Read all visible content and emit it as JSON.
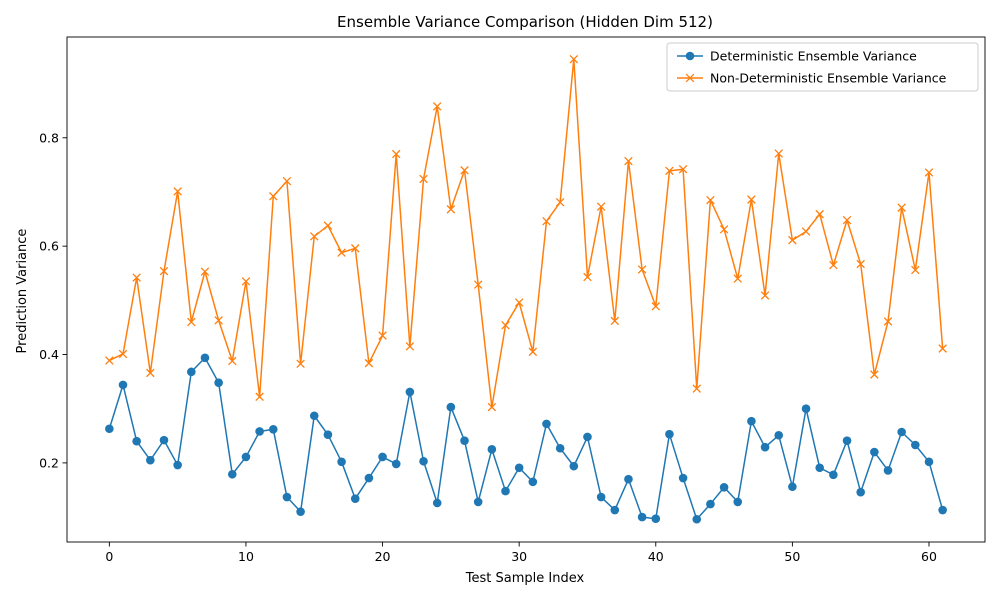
{
  "chart_data": {
    "type": "line",
    "title": "Ensemble Variance Comparison (Hidden Dim 512)",
    "xlabel": "Test Sample Index",
    "ylabel": "Prediction Variance",
    "xlim": [
      -3.1,
      64.1
    ],
    "ylim": [
      0.054,
      0.986
    ],
    "xticks": [
      0,
      10,
      20,
      30,
      40,
      50,
      60
    ],
    "yticks": [
      0.2,
      0.4,
      0.6,
      0.8
    ],
    "ytick_labels": [
      "0.2",
      "0.4",
      "0.6",
      "0.8"
    ],
    "grid": false,
    "legend_position": "top-right",
    "x": [
      0,
      1,
      2,
      3,
      4,
      5,
      6,
      7,
      8,
      9,
      10,
      11,
      12,
      13,
      14,
      15,
      16,
      17,
      18,
      19,
      20,
      21,
      22,
      23,
      24,
      25,
      26,
      27,
      28,
      29,
      30,
      31,
      32,
      33,
      34,
      35,
      36,
      37,
      38,
      39,
      40,
      41,
      42,
      43,
      44,
      45,
      46,
      47,
      48,
      49,
      50,
      51,
      52,
      53,
      54,
      55,
      56,
      57,
      58,
      59,
      60,
      61
    ],
    "series": [
      {
        "name": "Deterministic Ensemble Variance",
        "color": "#1f77b4",
        "marker": "circle",
        "values": [
          0.263,
          0.344,
          0.24,
          0.205,
          0.242,
          0.196,
          0.368,
          0.394,
          0.348,
          0.179,
          0.211,
          0.258,
          0.262,
          0.137,
          0.11,
          0.287,
          0.252,
          0.202,
          0.134,
          0.172,
          0.211,
          0.198,
          0.331,
          0.203,
          0.126,
          0.303,
          0.241,
          0.128,
          0.225,
          0.148,
          0.191,
          0.165,
          0.272,
          0.227,
          0.194,
          0.248,
          0.137,
          0.113,
          0.17,
          0.1,
          0.097,
          0.253,
          0.172,
          0.096,
          0.124,
          0.155,
          0.128,
          0.277,
          0.229,
          0.251,
          0.156,
          0.3,
          0.191,
          0.178,
          0.241,
          0.146,
          0.22,
          0.186,
          0.257,
          0.233,
          0.202,
          0.113
        ]
      },
      {
        "name": "Non-Deterministic Ensemble Variance",
        "color": "#ff7f0e",
        "marker": "x",
        "values": [
          0.389,
          0.401,
          0.542,
          0.366,
          0.554,
          0.701,
          0.46,
          0.553,
          0.463,
          0.388,
          0.535,
          0.322,
          0.692,
          0.72,
          0.383,
          0.618,
          0.638,
          0.588,
          0.596,
          0.384,
          0.435,
          0.77,
          0.415,
          0.724,
          0.858,
          0.668,
          0.74,
          0.529,
          0.303,
          0.454,
          0.496,
          0.405,
          0.646,
          0.681,
          0.945,
          0.543,
          0.673,
          0.462,
          0.757,
          0.557,
          0.489,
          0.739,
          0.742,
          0.337,
          0.685,
          0.631,
          0.54,
          0.686,
          0.509,
          0.771,
          0.611,
          0.627,
          0.659,
          0.565,
          0.648,
          0.567,
          0.363,
          0.461,
          0.671,
          0.556,
          0.736,
          0.411
        ]
      }
    ]
  }
}
